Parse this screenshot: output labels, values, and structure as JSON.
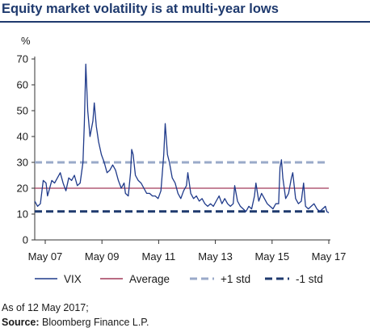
{
  "chart_data": {
    "type": "line",
    "title": "Equity market volatility is at multi-year lows",
    "ylabel": "%",
    "ylim": [
      0,
      70
    ],
    "yticks": [
      0,
      10,
      20,
      30,
      40,
      50,
      60,
      70
    ],
    "xlim": [
      2007.0,
      2017.37
    ],
    "xticks": [
      {
        "x": 2007.37,
        "label": "May 07"
      },
      {
        "x": 2009.37,
        "label": "May 09"
      },
      {
        "x": 2011.37,
        "label": "May 11"
      },
      {
        "x": 2013.37,
        "label": "May 13"
      },
      {
        "x": 2015.37,
        "label": "May 15"
      },
      {
        "x": 2017.37,
        "label": "May 17"
      }
    ],
    "grid": false,
    "legend_position": "bottom",
    "series": [
      {
        "name": "VIX",
        "color": "#1f3a8a",
        "style": "solid",
        "points": [
          [
            2007.0,
            15
          ],
          [
            2007.1,
            13
          ],
          [
            2007.2,
            14
          ],
          [
            2007.3,
            23
          ],
          [
            2007.4,
            22
          ],
          [
            2007.45,
            17
          ],
          [
            2007.5,
            19
          ],
          [
            2007.6,
            23
          ],
          [
            2007.7,
            22
          ],
          [
            2007.8,
            24
          ],
          [
            2007.9,
            26
          ],
          [
            2008.0,
            22
          ],
          [
            2008.1,
            19
          ],
          [
            2008.2,
            24
          ],
          [
            2008.3,
            23
          ],
          [
            2008.4,
            25
          ],
          [
            2008.5,
            21
          ],
          [
            2008.6,
            22
          ],
          [
            2008.7,
            30
          ],
          [
            2008.75,
            45
          ],
          [
            2008.8,
            68
          ],
          [
            2008.87,
            50
          ],
          [
            2008.95,
            40
          ],
          [
            2009.05,
            46
          ],
          [
            2009.1,
            53
          ],
          [
            2009.17,
            44
          ],
          [
            2009.25,
            38
          ],
          [
            2009.35,
            33
          ],
          [
            2009.45,
            30
          ],
          [
            2009.55,
            26
          ],
          [
            2009.65,
            27
          ],
          [
            2009.75,
            29
          ],
          [
            2009.85,
            27
          ],
          [
            2009.95,
            23
          ],
          [
            2010.05,
            20
          ],
          [
            2010.15,
            22
          ],
          [
            2010.2,
            18
          ],
          [
            2010.3,
            17
          ],
          [
            2010.38,
            26
          ],
          [
            2010.42,
            35
          ],
          [
            2010.47,
            33
          ],
          [
            2010.55,
            25
          ],
          [
            2010.65,
            23
          ],
          [
            2010.75,
            22
          ],
          [
            2010.85,
            20
          ],
          [
            2010.95,
            18
          ],
          [
            2011.05,
            18
          ],
          [
            2011.15,
            17
          ],
          [
            2011.25,
            17
          ],
          [
            2011.35,
            16
          ],
          [
            2011.45,
            19
          ],
          [
            2011.55,
            33
          ],
          [
            2011.6,
            45
          ],
          [
            2011.68,
            33
          ],
          [
            2011.75,
            30
          ],
          [
            2011.85,
            24
          ],
          [
            2011.95,
            22
          ],
          [
            2012.05,
            18
          ],
          [
            2012.15,
            16
          ],
          [
            2012.25,
            19
          ],
          [
            2012.35,
            21
          ],
          [
            2012.4,
            26
          ],
          [
            2012.5,
            18
          ],
          [
            2012.6,
            16
          ],
          [
            2012.7,
            17
          ],
          [
            2012.8,
            15
          ],
          [
            2012.9,
            16
          ],
          [
            2013.0,
            14
          ],
          [
            2013.1,
            13
          ],
          [
            2013.2,
            14
          ],
          [
            2013.3,
            13
          ],
          [
            2013.4,
            15
          ],
          [
            2013.5,
            17
          ],
          [
            2013.6,
            14
          ],
          [
            2013.7,
            16
          ],
          [
            2013.8,
            14
          ],
          [
            2013.9,
            13
          ],
          [
            2014.0,
            14
          ],
          [
            2014.05,
            21
          ],
          [
            2014.15,
            15
          ],
          [
            2014.25,
            13
          ],
          [
            2014.35,
            12
          ],
          [
            2014.45,
            11
          ],
          [
            2014.55,
            13
          ],
          [
            2014.65,
            12
          ],
          [
            2014.75,
            17
          ],
          [
            2014.8,
            22
          ],
          [
            2014.9,
            15
          ],
          [
            2015.0,
            18
          ],
          [
            2015.1,
            16
          ],
          [
            2015.2,
            14
          ],
          [
            2015.3,
            13
          ],
          [
            2015.4,
            12
          ],
          [
            2015.5,
            14
          ],
          [
            2015.6,
            14
          ],
          [
            2015.65,
            28
          ],
          [
            2015.7,
            31
          ],
          [
            2015.75,
            24
          ],
          [
            2015.85,
            16
          ],
          [
            2015.95,
            18
          ],
          [
            2016.05,
            24
          ],
          [
            2016.1,
            26
          ],
          [
            2016.2,
            16
          ],
          [
            2016.3,
            14
          ],
          [
            2016.4,
            15
          ],
          [
            2016.48,
            22
          ],
          [
            2016.55,
            13
          ],
          [
            2016.65,
            12
          ],
          [
            2016.75,
            13
          ],
          [
            2016.85,
            14
          ],
          [
            2016.95,
            12
          ],
          [
            2017.05,
            11
          ],
          [
            2017.15,
            12
          ],
          [
            2017.25,
            13
          ],
          [
            2017.3,
            11
          ],
          [
            2017.37,
            10.5
          ]
        ]
      },
      {
        "name": "Average",
        "color": "#a23a5a",
        "style": "solid",
        "value": 20
      },
      {
        "name": "+1 std",
        "color": "#9aaac9",
        "style": "dashed",
        "value": 30
      },
      {
        "name": "-1 std",
        "color": "#1f3a6e",
        "style": "dashed",
        "value": 11
      }
    ]
  },
  "notes": {
    "as_of": "As of 12 May 2017;",
    "source_label": "Source:",
    "source_text": " Bloomberg Finance L.P."
  }
}
